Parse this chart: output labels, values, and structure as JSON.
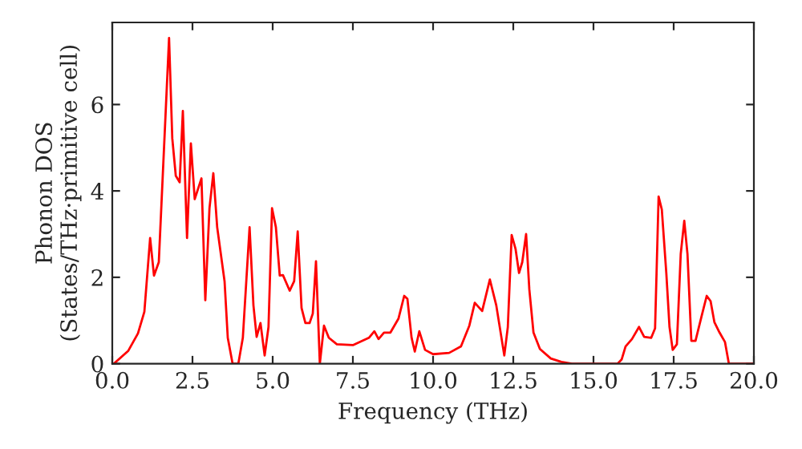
{
  "chart_data": {
    "type": "line",
    "xlabel": "Frequency (THz)",
    "ylabel": "Phonon DOS\n(States/THz·primitive cell)",
    "xlim": [
      0,
      20
    ],
    "ylim": [
      0,
      7.9
    ],
    "xticks": [
      {
        "value": 0,
        "label": "0.0"
      },
      {
        "value": 2.5,
        "label": "2.5"
      },
      {
        "value": 5,
        "label": "5.0"
      },
      {
        "value": 7.5,
        "label": "7.5"
      },
      {
        "value": 10,
        "label": "10.0"
      },
      {
        "value": 12.5,
        "label": "12.5"
      },
      {
        "value": 15,
        "label": "15.0"
      },
      {
        "value": 17.5,
        "label": "17.5"
      },
      {
        "value": 20,
        "label": "20.0"
      }
    ],
    "yticks": [
      0,
      2,
      4,
      6
    ],
    "grid": false,
    "legend": false,
    "marker": "none",
    "line_style": "solid",
    "x": [
      0.05,
      0.5,
      0.8,
      1.0,
      1.18,
      1.3,
      1.45,
      1.77,
      1.87,
      1.98,
      2.1,
      2.2,
      2.33,
      2.45,
      2.57,
      2.78,
      2.9,
      3.03,
      3.15,
      3.27,
      3.5,
      3.6,
      3.75,
      3.93,
      4.07,
      4.28,
      4.4,
      4.5,
      4.62,
      4.75,
      4.87,
      4.98,
      5.1,
      5.22,
      5.32,
      5.53,
      5.67,
      5.78,
      5.9,
      6.02,
      6.15,
      6.25,
      6.35,
      6.47,
      6.6,
      6.75,
      7.0,
      7.5,
      8.0,
      8.17,
      8.3,
      8.47,
      8.67,
      8.92,
      9.1,
      9.2,
      9.33,
      9.43,
      9.57,
      9.75,
      10.0,
      10.5,
      10.87,
      11.13,
      11.3,
      11.53,
      11.77,
      11.97,
      12.22,
      12.33,
      12.45,
      12.57,
      12.68,
      12.78,
      12.9,
      13.0,
      13.13,
      13.33,
      13.67,
      14.0,
      14.33,
      15.75,
      15.88,
      16.0,
      16.2,
      16.42,
      16.58,
      16.8,
      16.92,
      17.03,
      17.13,
      17.27,
      17.37,
      17.47,
      17.6,
      17.72,
      17.83,
      17.93,
      18.05,
      18.18,
      18.37,
      18.53,
      18.65,
      18.77,
      18.93,
      19.1,
      19.22,
      20.0
    ],
    "series": [
      {
        "color": "#ff0000",
        "values": [
          0,
          0.3,
          0.7,
          1.2,
          2.91,
          2.04,
          2.35,
          7.54,
          5.22,
          4.35,
          4.2,
          5.85,
          2.91,
          5.1,
          3.81,
          4.29,
          1.47,
          3.6,
          4.41,
          3.16,
          1.91,
          0.6,
          0,
          0,
          0.6,
          3.16,
          1.35,
          0.62,
          0.94,
          0.19,
          0.85,
          3.6,
          3.16,
          2.04,
          2.05,
          1.69,
          1.91,
          3.06,
          1.29,
          0.94,
          0.94,
          1.16,
          2.37,
          0,
          0.88,
          0.6,
          0.45,
          0.43,
          0.6,
          0.75,
          0.57,
          0.72,
          0.72,
          1.04,
          1.57,
          1.5,
          0.6,
          0.28,
          0.75,
          0.32,
          0.22,
          0.25,
          0.4,
          0.88,
          1.41,
          1.22,
          1.95,
          1.35,
          0.19,
          0.85,
          2.98,
          2.66,
          2.1,
          2.35,
          3.0,
          1.72,
          0.72,
          0.34,
          0.12,
          0.04,
          0,
          0,
          0.1,
          0.4,
          0.57,
          0.85,
          0.62,
          0.6,
          0.82,
          3.87,
          3.57,
          2.1,
          0.85,
          0.32,
          0.45,
          2.54,
          3.31,
          2.54,
          0.53,
          0.53,
          1.1,
          1.57,
          1.45,
          0.96,
          0.72,
          0.5,
          0,
          0
        ]
      }
    ]
  }
}
